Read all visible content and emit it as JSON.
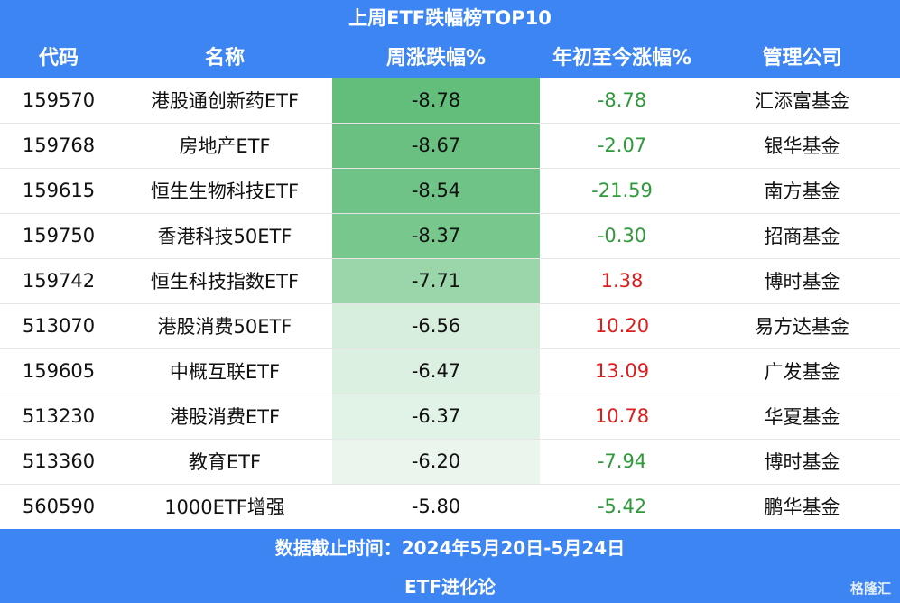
{
  "header": {
    "title": "上周ETF跌幅榜TOP10"
  },
  "table": {
    "columns": [
      "代码",
      "名称",
      "周涨跌幅%",
      "年初至今涨幅%",
      "管理公司"
    ],
    "rows": [
      [
        "159570",
        "港股通创新药ETF",
        "-8.78",
        "-8.78",
        "汇添富基金"
      ],
      [
        "159768",
        "房地产ETF",
        "-8.67",
        "-2.07",
        "银华基金"
      ],
      [
        "159615",
        "恒生生物科技ETF",
        "-8.54",
        "-21.59",
        "南方基金"
      ],
      [
        "159750",
        "香港科技50ETF",
        "-8.37",
        "-0.30",
        "招商基金"
      ],
      [
        "159742",
        "恒生科技指数ETF",
        "-7.71",
        "1.38",
        "博时基金"
      ],
      [
        "513070",
        "港股消费50ETF",
        "-6.56",
        "10.20",
        "易方达基金"
      ],
      [
        "159605",
        "中概互联ETF",
        "-6.47",
        "13.09",
        "广发基金"
      ],
      [
        "513230",
        "港股消费ETF",
        "-6.37",
        "10.78",
        "华夏基金"
      ],
      [
        "513360",
        "教育ETF",
        "-6.20",
        "-7.94",
        "博时基金"
      ],
      [
        "560590",
        "1000ETF增强",
        "-5.80",
        "-5.42",
        "鹏华基金"
      ]
    ]
  },
  "footer": {
    "date": "数据截止时间：2024年5月20日-5月24日",
    "source": "ETF进化论"
  },
  "watermark": "格隆汇"
}
